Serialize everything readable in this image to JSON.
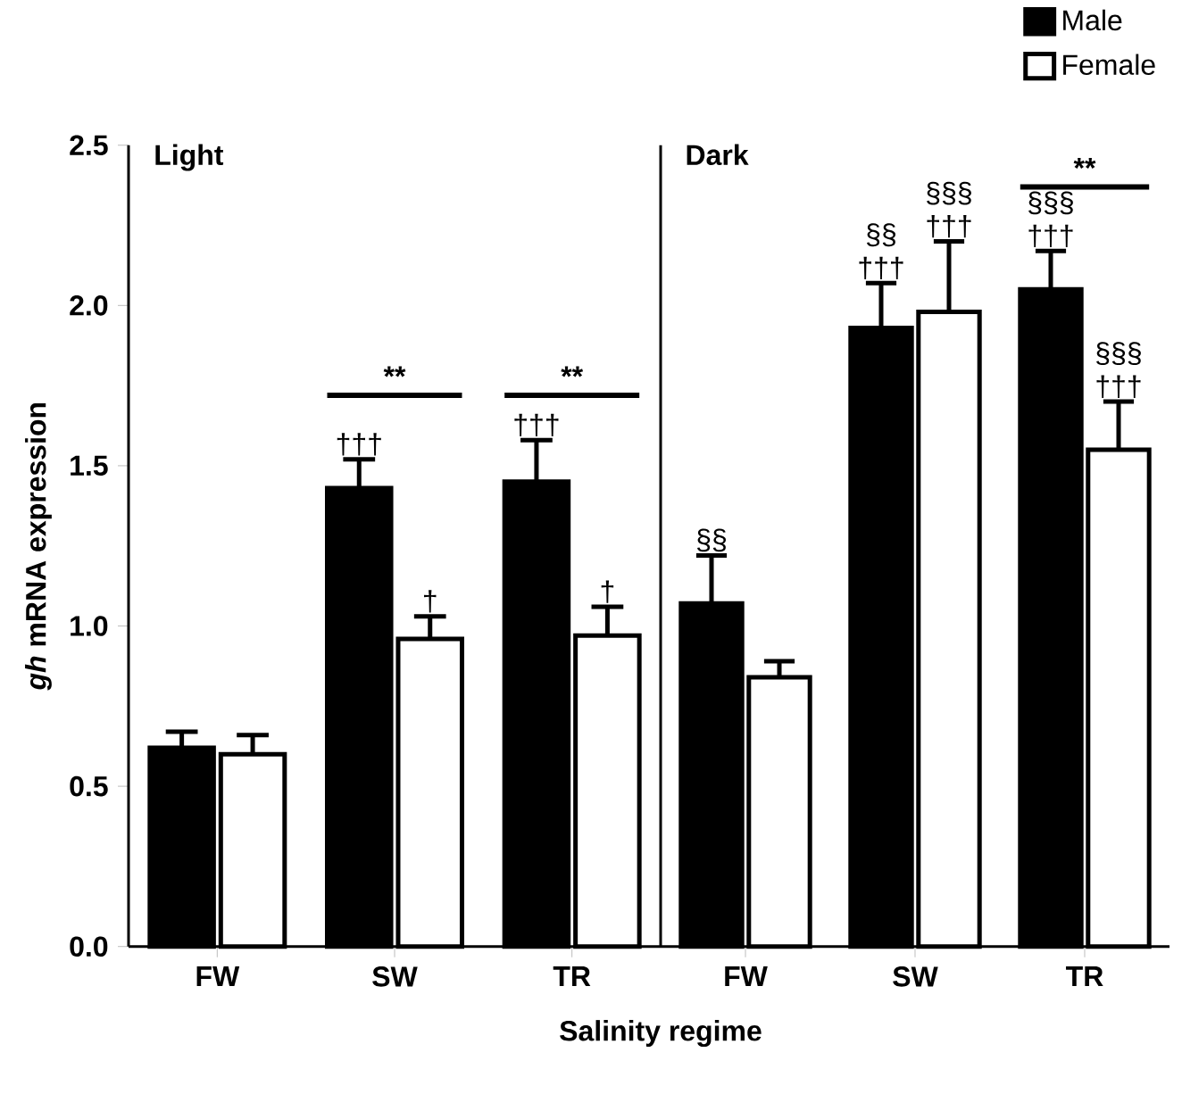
{
  "chart_data": [
    {
      "type": "bar",
      "title": "Light",
      "ylabel": "*gh* mRNA expression",
      "xlabel": "Salinity regime",
      "categories": [
        "FW",
        "SW",
        "TR"
      ],
      "series": [
        {
          "color": "#000000",
          "values": [
            0.62,
            1.43,
            1.45
          ],
          "errors": [
            [
              0.62,
              0.67
            ],
            [
              1.43,
              1.52
            ],
            [
              1.45,
              1.58
            ]
          ],
          "value_labels": [
            null,
            "†††",
            "†††"
          ]
        },
        {
          "color": "#ffffff",
          "values": [
            0.6,
            0.96,
            0.97
          ],
          "errors": [
            [
              0.6,
              0.66
            ],
            [
              0.96,
              1.03
            ],
            [
              0.97,
              1.06
            ]
          ],
          "value_labels": [
            null,
            "†",
            "†"
          ]
        }
      ],
      "annotations": [
        "**",
        "**"
      ],
      "ylim": [
        0,
        2.5
      ],
      "yticks": [
        {
          "value": 0,
          "label": "0.0"
        },
        {
          "value": 0.5,
          "label": "0.5"
        },
        {
          "value": 1,
          "label": "1.0"
        },
        {
          "value": 1.5,
          "label": "1.5"
        },
        {
          "value": 2,
          "label": "2.0"
        },
        {
          "value": 2.5,
          "label": "2.5"
        }
      ]
    },
    {
      "type": "bar",
      "title": "Dark",
      "categories": [
        "FW",
        "SW",
        "TR"
      ],
      "legend": "top right",
      "tick_labels": "x",
      "series": [
        {
          "name": "Male",
          "color": "#000000",
          "values": [
            1.07,
            1.93,
            2.05
          ],
          "errors": [
            [
              1.07,
              1.22
            ],
            [
              1.93,
              2.07
            ],
            [
              2.05,
              2.17
            ]
          ],
          "value_labels": [
            "§§",
            "§§ †††",
            "§§§ †††"
          ]
        },
        {
          "name": "Female",
          "color": "#ffffff",
          "values": [
            0.84,
            1.98,
            1.55
          ],
          "errors": [
            [
              0.84,
              0.89
            ],
            [
              1.98,
              2.2
            ],
            [
              1.55,
              1.7
            ]
          ],
          "value_labels": [
            null,
            "§§§ †††",
            "§§§ †††"
          ]
        }
      ],
      "annotations": [
        "**"
      ],
      "ylim": [
        0,
        2.5
      ]
    }
  ]
}
